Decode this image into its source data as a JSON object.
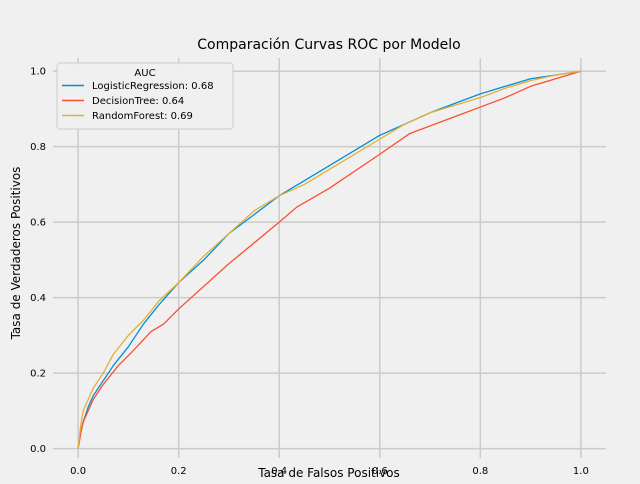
{
  "chart_data": {
    "type": "line",
    "title": "Comparación Curvas ROC por Modelo",
    "xlabel": "Tasa de Falsos Positivos",
    "ylabel": "Tasa de Verdaderos Positivos",
    "xlim": [
      -0.05,
      1.05
    ],
    "ylim": [
      -0.025,
      1.035
    ],
    "x_ticks": [
      "0.0",
      "0.2",
      "0.4",
      "0.6",
      "0.8",
      "1.0"
    ],
    "y_ticks": [
      "0.0",
      "0.2",
      "0.4",
      "0.6",
      "0.8",
      "1.0"
    ],
    "grid": true,
    "legend": {
      "title": "AUC",
      "placement": "top-left"
    },
    "series": [
      {
        "name": "LogisticRegression: 0.68",
        "color": "#008fd5",
        "x": [
          0,
          0.005,
          0.01,
          0.02,
          0.03,
          0.05,
          0.07,
          0.1,
          0.13,
          0.16,
          0.2,
          0.25,
          0.3,
          0.35,
          0.4,
          0.45,
          0.5,
          0.55,
          0.6,
          0.65,
          0.7,
          0.75,
          0.8,
          0.85,
          0.9,
          0.95,
          1.0
        ],
        "y": [
          0,
          0.04,
          0.07,
          0.11,
          0.14,
          0.18,
          0.22,
          0.27,
          0.33,
          0.38,
          0.44,
          0.5,
          0.57,
          0.62,
          0.67,
          0.71,
          0.75,
          0.79,
          0.83,
          0.86,
          0.89,
          0.915,
          0.94,
          0.96,
          0.98,
          0.99,
          1.0
        ]
      },
      {
        "name": "DecisionTree: 0.64",
        "color": "#fc4f30",
        "x": [
          0,
          0.005,
          0.01,
          0.03,
          0.05,
          0.08,
          0.11,
          0.145,
          0.17,
          0.2,
          0.3,
          0.4,
          0.435,
          0.5,
          0.6,
          0.66,
          0.75,
          0.8,
          0.85,
          0.9,
          0.95,
          1.0
        ],
        "y": [
          0,
          0.04,
          0.07,
          0.13,
          0.17,
          0.22,
          0.26,
          0.31,
          0.33,
          0.37,
          0.49,
          0.6,
          0.64,
          0.69,
          0.78,
          0.835,
          0.88,
          0.905,
          0.93,
          0.96,
          0.98,
          1.0
        ]
      },
      {
        "name": "RandomForest: 0.69",
        "color": "#e5ae38",
        "x": [
          0,
          0.005,
          0.01,
          0.02,
          0.03,
          0.05,
          0.07,
          0.1,
          0.13,
          0.16,
          0.2,
          0.25,
          0.3,
          0.35,
          0.4,
          0.45,
          0.5,
          0.55,
          0.6,
          0.65,
          0.7,
          0.75,
          0.8,
          0.85,
          0.9,
          0.95,
          1.0
        ],
        "y": [
          0,
          0.06,
          0.1,
          0.13,
          0.16,
          0.2,
          0.25,
          0.3,
          0.34,
          0.39,
          0.44,
          0.51,
          0.57,
          0.63,
          0.67,
          0.7,
          0.74,
          0.78,
          0.82,
          0.86,
          0.89,
          0.91,
          0.93,
          0.955,
          0.975,
          0.99,
          1.0
        ]
      }
    ]
  }
}
